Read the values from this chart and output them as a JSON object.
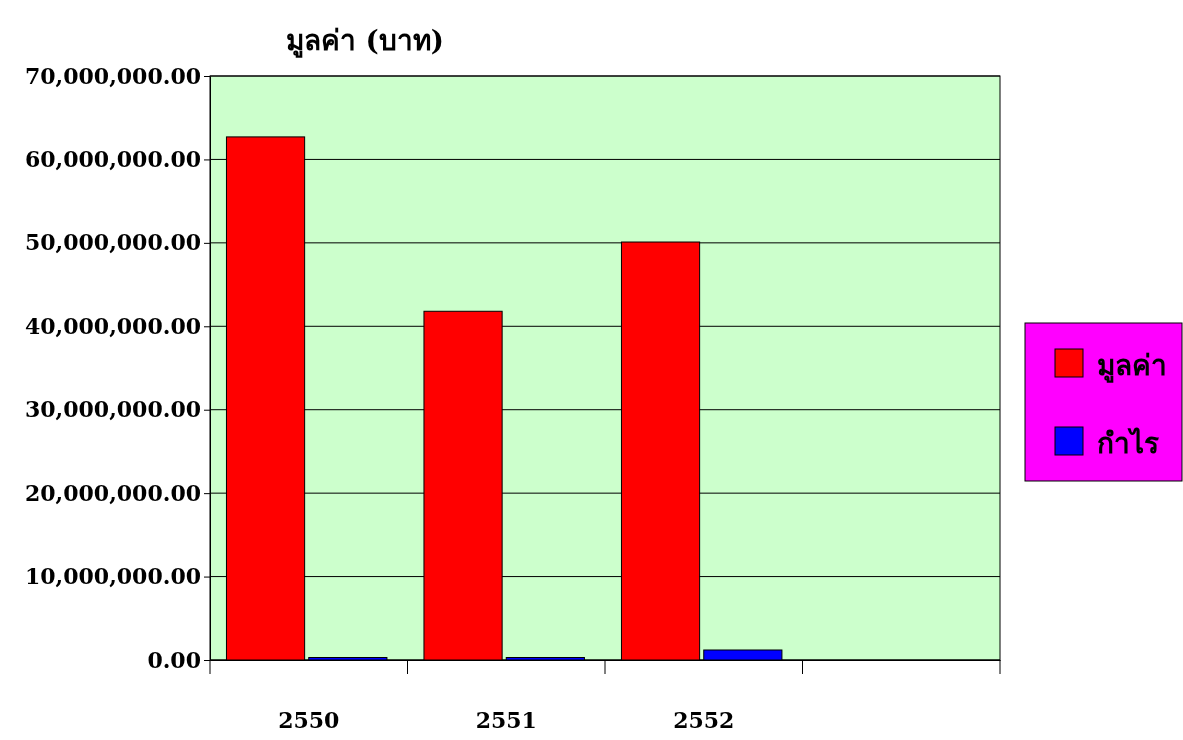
{
  "chart_data": {
    "type": "bar",
    "ylabel": "มูลค่า (บาท)",
    "categories": [
      "2550",
      "2551",
      "2552",
      null
    ],
    "series": [
      {
        "name": "มูลค่า",
        "color": "#ff0000",
        "values": [
          62700000,
          41800000,
          50100000,
          null
        ]
      },
      {
        "name": "กำไร",
        "color": "#0000ff",
        "values": [
          300000,
          300000,
          1200000,
          null
        ]
      }
    ],
    "ylim": [
      0,
      70000000
    ],
    "yticks": [
      {
        "value": 0,
        "label": "0.00"
      },
      {
        "value": 10000000,
        "label": "10,000,000.00"
      },
      {
        "value": 20000000,
        "label": "20,000,000.00"
      },
      {
        "value": 30000000,
        "label": "30,000,000.00"
      },
      {
        "value": 40000000,
        "label": "40,000,000.00"
      },
      {
        "value": 50000000,
        "label": "50,000,000.00"
      },
      {
        "value": 60000000,
        "label": "60,000,000.00"
      },
      {
        "value": 70000000,
        "label": "70,000,000.00"
      }
    ],
    "grid": "y",
    "legend": "right"
  }
}
